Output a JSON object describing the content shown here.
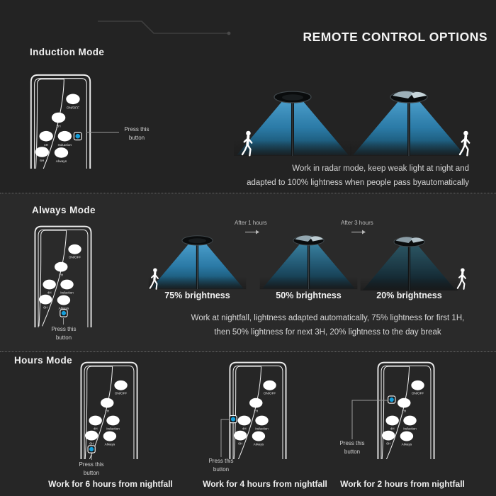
{
  "title": "REMOTE CONTROL OPTIONS",
  "remote_buttons": [
    {
      "id": "on-off",
      "label": "ON/OFF"
    },
    {
      "id": "2h",
      "label": "2H"
    },
    {
      "id": "4h",
      "label": "4H"
    },
    {
      "id": "induction",
      "label": "Induction"
    },
    {
      "id": "6h",
      "label": "6H"
    },
    {
      "id": "always",
      "label": "Always"
    }
  ],
  "induction_mode": {
    "heading": "Induction Mode",
    "press_label": "Press this button",
    "description_line1": "Work in radar mode, keep weak light at night and",
    "description_line2": "adapted to 100% lightness when people pass byautomatically"
  },
  "always_mode": {
    "heading": "Always Mode",
    "press_label": "Press this button",
    "transition1": "After 1 hours",
    "transition2": "After 3 hours",
    "stage1_label": "75% brightness",
    "stage2_label": "50% brightness",
    "stage3_label": "20% brightness",
    "description_line1": "Work at nightfall, lightness adapted automatically, 75% lightness for first 1H,",
    "description_line2": "then 50% lightness for next 3H, 20% lightness to the day break"
  },
  "hours_mode": {
    "heading": "Hours Mode",
    "remote1": {
      "press_label": "Press this button",
      "caption": "Work for 6 hours from nightfall"
    },
    "remote2": {
      "press_label": "Press this button",
      "caption": "Work for 4 hours from nightfall"
    },
    "remote3": {
      "press_label": "Press this button",
      "caption": "Work for 2 hours from nightfall"
    }
  },
  "colors": {
    "accent_blue": "#159fdb",
    "beam_bright": "#2f87b9",
    "beam_mid": "#22607f",
    "beam_dim": "#1b3c49",
    "background": "#262626"
  },
  "icons": {
    "walking_person": "pedestrian-figure",
    "transition_arrow": "→",
    "street_lamp": "lamp-with-light-beam"
  }
}
